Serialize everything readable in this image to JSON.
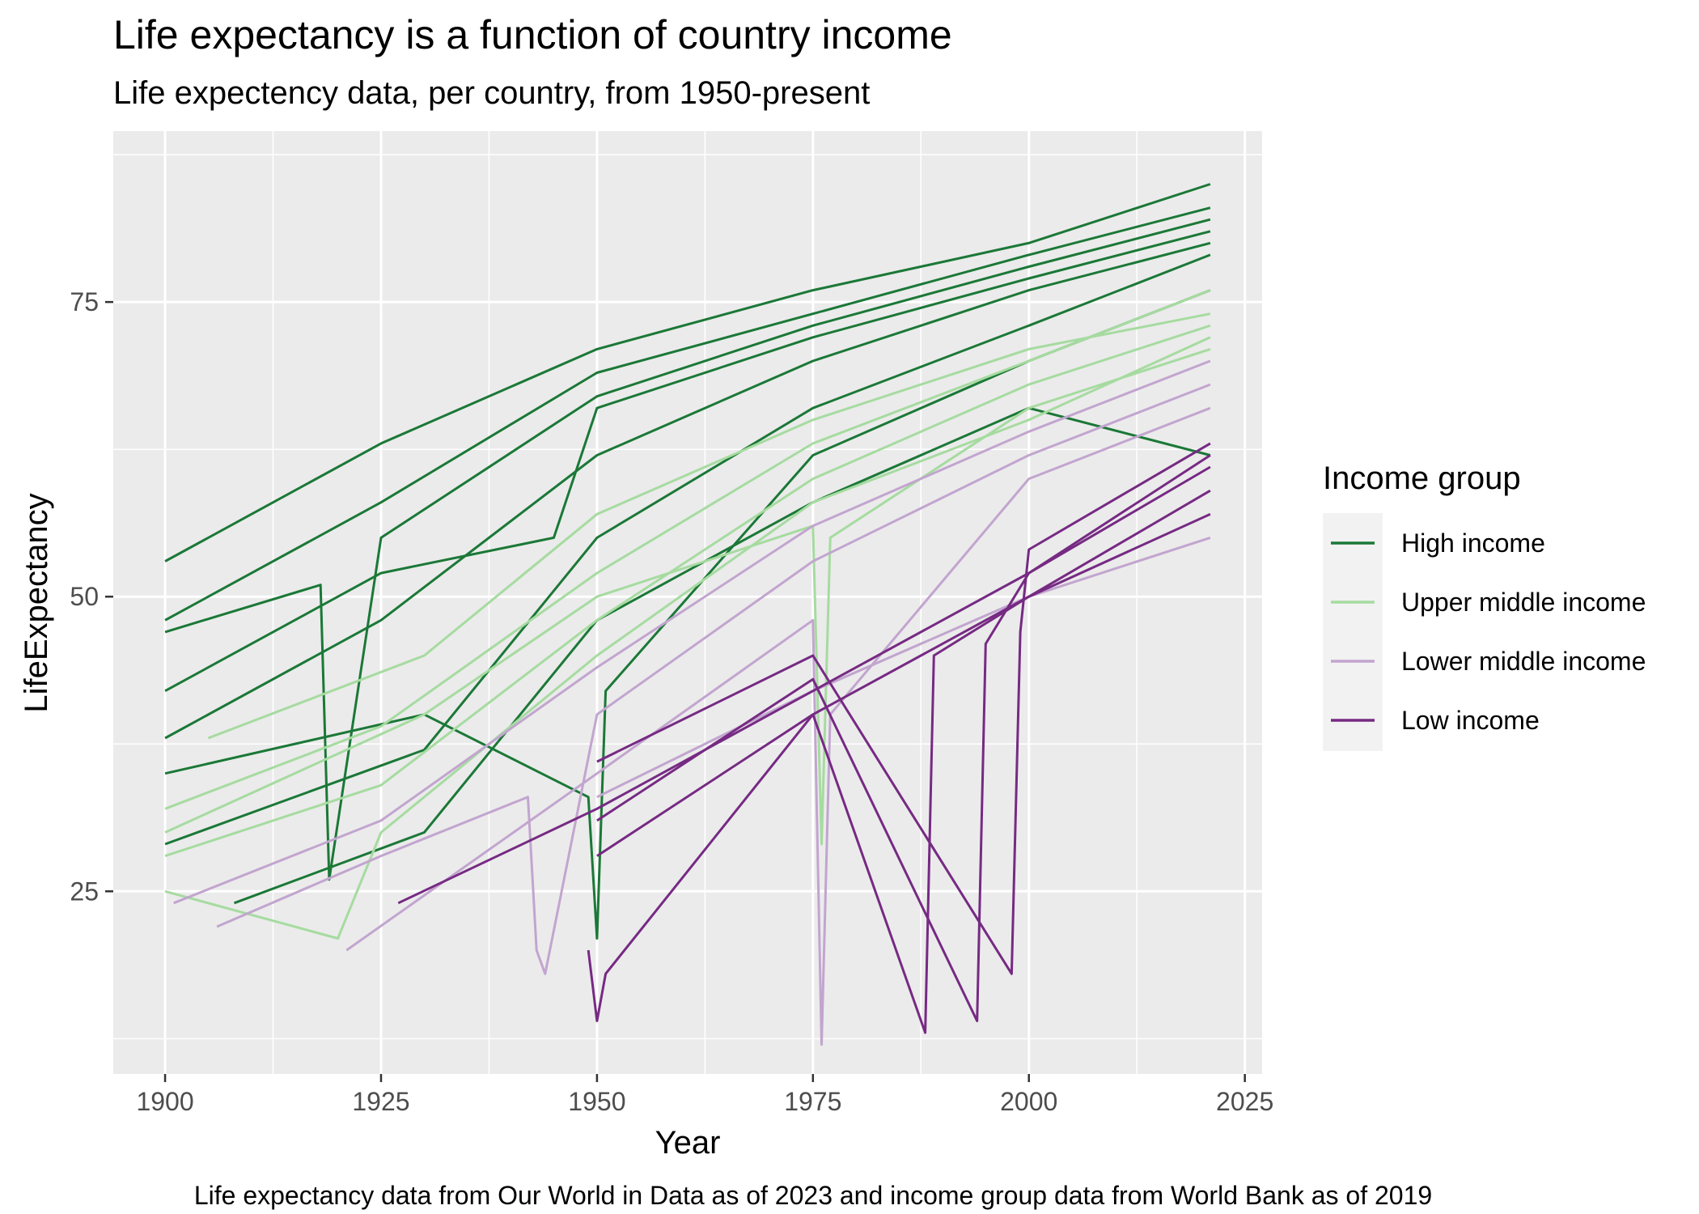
{
  "chart_data": {
    "type": "line",
    "title": "Life expectancy is a function of country income",
    "subtitle": "Life expectency data, per country, from 1950-present",
    "caption": "Life expectancy data from Our World in Data as of 2023 and income group data from World Bank as of 2019",
    "xlabel": "Year",
    "ylabel": "LifeExpectancy",
    "xlim": [
      1894,
      2027
    ],
    "ylim": [
      9.5,
      89.5
    ],
    "x_ticks": [
      1900,
      1925,
      1950,
      1975,
      2000,
      2025
    ],
    "x_tick_labels": [
      "1900",
      "1925",
      "1950",
      "1975",
      "2000",
      "2025"
    ],
    "x_minor_ticks": [
      1912.5,
      1937.5,
      1962.5,
      1987.5,
      2012.5
    ],
    "y_ticks": [
      25,
      50,
      75
    ],
    "y_tick_labels": [
      "25",
      "50",
      "75"
    ],
    "y_minor_ticks": [
      12.5,
      37.5,
      62.5,
      87.5
    ],
    "grid": true,
    "legend": {
      "title": "Income group",
      "position": "right",
      "entries": [
        {
          "label": "High income",
          "color": "#1b7837"
        },
        {
          "label": "Upper middle income",
          "color": "#a6dba0"
        },
        {
          "label": "Lower middle income",
          "color": "#c2a5cf"
        },
        {
          "label": "Low income",
          "color": "#762a83"
        }
      ]
    },
    "series": [
      {
        "group": "High income",
        "color": "#1b7837",
        "x": [
          1900,
          1925,
          1950,
          1975,
          2000,
          2021
        ],
        "y": [
          53,
          63,
          71,
          76,
          80,
          85
        ]
      },
      {
        "group": "High income",
        "color": "#1b7837",
        "x": [
          1900,
          1925,
          1950,
          1975,
          2000,
          2021
        ],
        "y": [
          48,
          58,
          69,
          74,
          79,
          83
        ]
      },
      {
        "group": "High income",
        "color": "#1b7837",
        "x": [
          1900,
          1918,
          1919,
          1925,
          1950,
          1975,
          2000,
          2021
        ],
        "y": [
          47,
          51,
          26,
          55,
          67,
          73,
          78,
          82
        ]
      },
      {
        "group": "High income",
        "color": "#1b7837",
        "x": [
          1900,
          1925,
          1945,
          1950,
          1975,
          2000,
          2021
        ],
        "y": [
          42,
          52,
          55,
          66,
          72,
          77,
          81
        ]
      },
      {
        "group": "High income",
        "color": "#1b7837",
        "x": [
          1900,
          1925,
          1950,
          1975,
          2000,
          2021
        ],
        "y": [
          38,
          48,
          62,
          70,
          76,
          80
        ]
      },
      {
        "group": "High income",
        "color": "#1b7837",
        "x": [
          1900,
          1930,
          1950,
          1975,
          2000,
          2021
        ],
        "y": [
          29,
          37,
          55,
          66,
          73,
          79
        ]
      },
      {
        "group": "High income",
        "color": "#1b7837",
        "x": [
          1900,
          1930,
          1949,
          1950,
          1951,
          1975,
          2000,
          2021
        ],
        "y": [
          35,
          40,
          33,
          21,
          42,
          62,
          70,
          76
        ]
      },
      {
        "group": "High income",
        "color": "#1b7837",
        "x": [
          1908,
          1930,
          1950,
          1975,
          2000,
          2021
        ],
        "y": [
          24,
          30,
          48,
          58,
          66,
          62
        ]
      },
      {
        "group": "Upper middle income",
        "color": "#a6dba0",
        "x": [
          1900,
          1925,
          1950,
          1975,
          2000,
          2021
        ],
        "y": [
          32,
          39,
          52,
          63,
          70,
          76
        ]
      },
      {
        "group": "Upper middle income",
        "color": "#a6dba0",
        "x": [
          1900,
          1925,
          1950,
          1975,
          2000,
          2021
        ],
        "y": [
          28,
          34,
          48,
          60,
          68,
          73
        ]
      },
      {
        "group": "Upper middle income",
        "color": "#a6dba0",
        "x": [
          1900,
          1920,
          1925,
          1950,
          1975,
          2000,
          2021
        ],
        "y": [
          25,
          21,
          30,
          45,
          58,
          65,
          72
        ]
      },
      {
        "group": "Upper middle income",
        "color": "#a6dba0",
        "x": [
          1900,
          1930,
          1950,
          1975,
          1976,
          1977,
          2000,
          2021
        ],
        "y": [
          30,
          40,
          50,
          56,
          29,
          55,
          66,
          71
        ]
      },
      {
        "group": "Upper middle income",
        "color": "#a6dba0",
        "x": [
          1905,
          1930,
          1950,
          1975,
          2000,
          2021
        ],
        "y": [
          38,
          45,
          57,
          65,
          71,
          74
        ]
      },
      {
        "group": "Lower middle income",
        "color": "#c2a5cf",
        "x": [
          1901,
          1925,
          1950,
          1975,
          2000,
          2021
        ],
        "y": [
          24,
          31,
          44,
          56,
          64,
          70
        ]
      },
      {
        "group": "Lower middle income",
        "color": "#c2a5cf",
        "x": [
          1906,
          1925,
          1942,
          1943,
          1944,
          1950,
          1975,
          2000,
          2021
        ],
        "y": [
          22,
          28,
          33,
          20,
          18,
          40,
          53,
          62,
          68
        ]
      },
      {
        "group": "Lower middle income",
        "color": "#c2a5cf",
        "x": [
          1921,
          1950,
          1975,
          1976,
          1977,
          2000,
          2021
        ],
        "y": [
          20,
          35,
          48,
          12,
          40,
          60,
          66
        ]
      },
      {
        "group": "Lower middle income",
        "color": "#c2a5cf",
        "x": [
          1950,
          1975,
          2000,
          2021
        ],
        "y": [
          33,
          42,
          50,
          55
        ]
      },
      {
        "group": "Low income",
        "color": "#762a83",
        "x": [
          1927,
          1950,
          1975,
          2000,
          2021
        ],
        "y": [
          24,
          32,
          42,
          52,
          62
        ]
      },
      {
        "group": "Low income",
        "color": "#762a83",
        "x": [
          1949,
          1950,
          1951,
          1975,
          2000,
          2021
        ],
        "y": [
          20,
          14,
          18,
          40,
          50,
          59
        ]
      },
      {
        "group": "Low income",
        "color": "#762a83",
        "x": [
          1950,
          1975,
          1988,
          1989,
          2000,
          2021
        ],
        "y": [
          28,
          40,
          13,
          45,
          50,
          57
        ]
      },
      {
        "group": "Low income",
        "color": "#762a83",
        "x": [
          1950,
          1975,
          1994,
          1995,
          2000,
          2021
        ],
        "y": [
          31,
          43,
          14,
          46,
          52,
          61
        ]
      },
      {
        "group": "Low income",
        "color": "#762a83",
        "x": [
          1950,
          1975,
          1998,
          1999,
          2000,
          2021
        ],
        "y": [
          36,
          45,
          18,
          47,
          54,
          63
        ]
      }
    ]
  }
}
